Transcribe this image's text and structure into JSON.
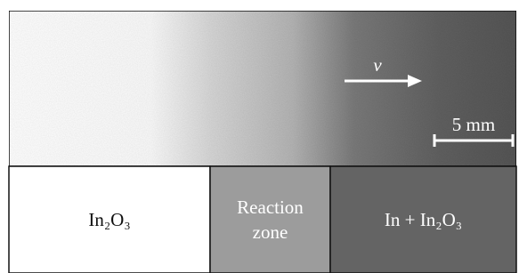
{
  "image": {
    "velocity_label": "v",
    "scale_bar_label": "5 mm"
  },
  "zones": [
    {
      "lines": [
        "In₂O₃"
      ]
    },
    {
      "lines": [
        "Reaction",
        "zone"
      ]
    },
    {
      "lines": [
        "In + In₂O₃"
      ]
    }
  ]
}
